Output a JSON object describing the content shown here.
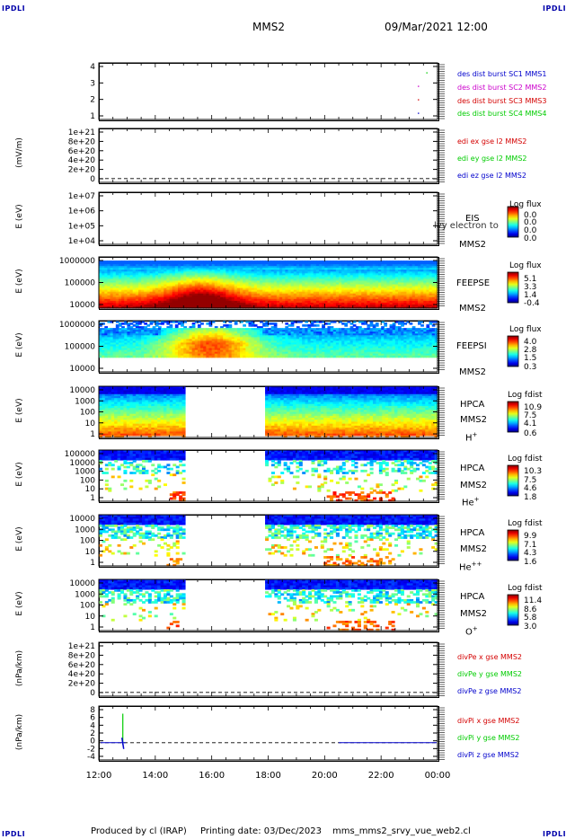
{
  "corners": {
    "tl": "IPDLI",
    "tr": "IPDLI",
    "bl": "IPDLI",
    "br": "IPDLI"
  },
  "header": {
    "spacecraft": "MMS2",
    "datetime": "09/Mar/2021 12:00"
  },
  "footer": {
    "produced_by": "Produced by cl (IRAP)",
    "printing_date": "Printing date: 03/Dec/2023",
    "filename": "mms_mms2_srvy_vue_web2.cl"
  },
  "colors": {
    "red": "#d40000",
    "magenta": "#cc00cc",
    "green": "#00cc00",
    "blue": "#0000cc"
  },
  "chart_data": [
    {
      "type": "scatter",
      "id": "burst",
      "yticks": [
        "4",
        "3",
        "2",
        "1"
      ],
      "legend": [
        {
          "name": "des dist burst SC1 MMS1",
          "color": "#0000cc"
        },
        {
          "name": "des dist burst SC2 MMS2",
          "color": "#cc00cc"
        },
        {
          "name": "des dist burst SC3 MMS3",
          "color": "#d40000"
        },
        {
          "name": "des dist burst SC4 MMS4",
          "color": "#00cc00"
        }
      ]
    },
    {
      "type": "line",
      "id": "edi",
      "ylabel": "(mV/m)",
      "yticks": [
        "1e+21",
        "8e+20",
        "6e+20",
        "4e+20",
        "2e+20",
        "0"
      ],
      "legend": [
        {
          "name": "edi ex gse l2 MMS2",
          "color": "#d40000"
        },
        {
          "name": "edi ey gse l2 MMS2",
          "color": "#00cc00"
        },
        {
          "name": "edi ez gse l2 MMS2",
          "color": "#0000cc"
        }
      ]
    },
    {
      "type": "heatmap",
      "id": "eis",
      "ylabel": "E (eV)",
      "yticks": [
        "1e+07",
        "1e+06",
        "1e+05",
        "1e+04"
      ],
      "instrument": "EIS",
      "overlay": "lvy electron to",
      "sc": "MMS2",
      "cb_title": "Log flux",
      "cb_values": [
        "0.0",
        "0.0",
        "0.0",
        "0.0"
      ]
    },
    {
      "type": "heatmap",
      "id": "feepse",
      "ylabel": "E (eV)",
      "yticks": [
        "1000000",
        "100000",
        "10000"
      ],
      "instrument": "FEEPSE",
      "sc": "MMS2",
      "cb_title": "Log flux",
      "cb_values": [
        "5.1",
        "3.3",
        "1.4",
        "-0.4"
      ]
    },
    {
      "type": "heatmap",
      "id": "feepsi",
      "ylabel": "E (eV)",
      "yticks": [
        "1000000",
        "100000",
        "10000"
      ],
      "instrument": "FEEPSI",
      "sc": "MMS2",
      "cb_title": "Log flux",
      "cb_values": [
        "4.0",
        "2.8",
        "1.5",
        "0.3"
      ]
    },
    {
      "type": "heatmap",
      "id": "hpca_h",
      "ylabel": "E (eV)",
      "yticks": [
        "10000",
        "1000",
        "100",
        "10",
        "1"
      ],
      "instrument": "HPCA",
      "sc": "MMS2",
      "species": "H",
      "charge": "+",
      "cb_title": "Log fdist",
      "cb_values": [
        "10.9",
        "7.5",
        "4.1",
        "0.6"
      ]
    },
    {
      "type": "heatmap",
      "id": "hpca_he",
      "ylabel": "E (eV)",
      "yticks": [
        "100000",
        "10000",
        "1000",
        "100",
        "10",
        "1"
      ],
      "instrument": "HPCA",
      "sc": "MMS2",
      "species": "He",
      "charge": "+",
      "cb_title": "Log fdist",
      "cb_values": [
        "10.3",
        "7.5",
        "4.6",
        "1.8"
      ]
    },
    {
      "type": "heatmap",
      "id": "hpca_hepp",
      "ylabel": "E (eV)",
      "yticks": [
        "10000",
        "1000",
        "100",
        "10",
        "1"
      ],
      "instrument": "HPCA",
      "sc": "MMS2",
      "species": "He",
      "charge": "++",
      "cb_title": "Log fdist",
      "cb_values": [
        "9.9",
        "7.1",
        "4.3",
        "1.6"
      ]
    },
    {
      "type": "heatmap",
      "id": "hpca_o",
      "ylabel": "E (eV)",
      "yticks": [
        "10000",
        "1000",
        "100",
        "10",
        "1"
      ],
      "instrument": "HPCA",
      "sc": "MMS2",
      "species": "O",
      "charge": "+",
      "cb_title": "Log fdist",
      "cb_values": [
        "11.4",
        "8.6",
        "5.8",
        "3.0"
      ]
    },
    {
      "type": "line",
      "id": "divpe",
      "ylabel": "(nPa/km)",
      "yticks": [
        "1e+21",
        "8e+20",
        "6e+20",
        "4e+20",
        "2e+20",
        "0"
      ],
      "legend": [
        {
          "name": "divPe x gse MMS2",
          "color": "#d40000"
        },
        {
          "name": "divPe y gse MMS2",
          "color": "#00cc00"
        },
        {
          "name": "divPe z gse MMS2",
          "color": "#0000cc"
        }
      ]
    },
    {
      "type": "line",
      "id": "divpi",
      "ylabel": "(nPa/km)",
      "yticks": [
        "8",
        "6",
        "4",
        "2",
        "0",
        "-2",
        "-4"
      ],
      "legend": [
        {
          "name": "divPi x gse MMS2",
          "color": "#d40000"
        },
        {
          "name": "divPi y gse MMS2",
          "color": "#00cc00"
        },
        {
          "name": "divPi z gse MMS2",
          "color": "#0000cc"
        }
      ],
      "spike": {
        "x_hour": 12.85,
        "y_max": 7,
        "y_min": -0.5
      }
    }
  ],
  "x_axis": {
    "ticks": [
      "12:00",
      "14:00",
      "16:00",
      "18:00",
      "20:00",
      "22:00",
      "00:00"
    ],
    "range_hours": [
      12,
      24
    ]
  },
  "data_gaps_hours": [
    [
      15.1,
      17.85
    ]
  ]
}
